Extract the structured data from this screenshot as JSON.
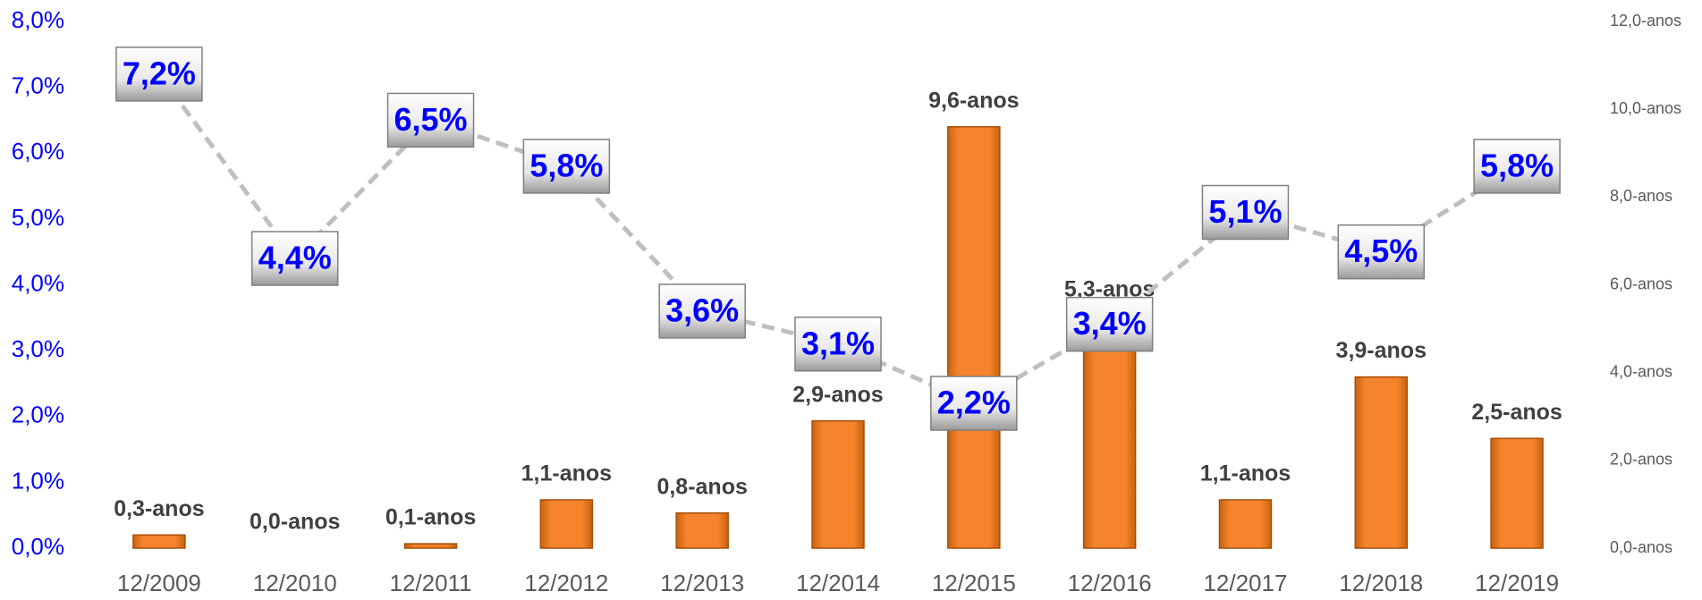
{
  "chart_data": {
    "type": "bar_line",
    "categories": [
      "12/2009",
      "12/2010",
      "12/2011",
      "12/2012",
      "12/2013",
      "12/2014",
      "12/2015",
      "12/2016",
      "12/2017",
      "12/2018",
      "12/2019"
    ],
    "series": [
      {
        "type": "bar",
        "axis": "y2",
        "color": "#f5842c",
        "values": [
          0.3,
          0.0,
          0.1,
          1.1,
          0.8,
          2.9,
          9.6,
          5.3,
          1.1,
          3.9,
          2.5
        ],
        "value_labels": [
          "0,3-anos",
          "0,0-anos",
          "0,1-anos",
          "1,1-anos",
          "0,8-anos",
          "2,9-anos",
          "9,6-anos",
          "5,3-anos",
          "1,1-anos",
          "3,9-anos",
          "2,5-anos"
        ]
      },
      {
        "type": "line",
        "axis": "y",
        "color": "#bfbfbf",
        "values": [
          7.2,
          4.4,
          6.5,
          5.8,
          3.6,
          3.1,
          2.2,
          3.4,
          5.1,
          4.5,
          5.8
        ],
        "value_labels": [
          "7,2%",
          "4,4%",
          "6,5%",
          "5,8%",
          "3,6%",
          "3,1%",
          "2,2%",
          "3,4%",
          "5,1%",
          "4,5%",
          "5,8%"
        ]
      }
    ],
    "ylim": [
      0,
      8
    ],
    "yticks": [
      {
        "value": 0,
        "label": "0,0%"
      },
      {
        "value": 1,
        "label": "1,0%"
      },
      {
        "value": 2,
        "label": "2,0%"
      },
      {
        "value": 3,
        "label": "3,0%"
      },
      {
        "value": 4,
        "label": "4,0%"
      },
      {
        "value": 5,
        "label": "5,0%"
      },
      {
        "value": 6,
        "label": "6,0%"
      },
      {
        "value": 7,
        "label": "7,0%"
      },
      {
        "value": 8,
        "label": "8,0%"
      }
    ],
    "y2lim": [
      0,
      12
    ],
    "y2ticks": [
      {
        "value": 0,
        "label": "0,0-anos"
      },
      {
        "value": 2,
        "label": "2,0-anos"
      },
      {
        "value": 4,
        "label": "4,0-anos"
      },
      {
        "value": 6,
        "label": "6,0-anos"
      },
      {
        "value": 8,
        "label": "8,0-anos"
      },
      {
        "value": 10,
        "label": "10,0-anos"
      },
      {
        "value": 12,
        "label": "12,0-anos"
      }
    ],
    "grid": false
  }
}
